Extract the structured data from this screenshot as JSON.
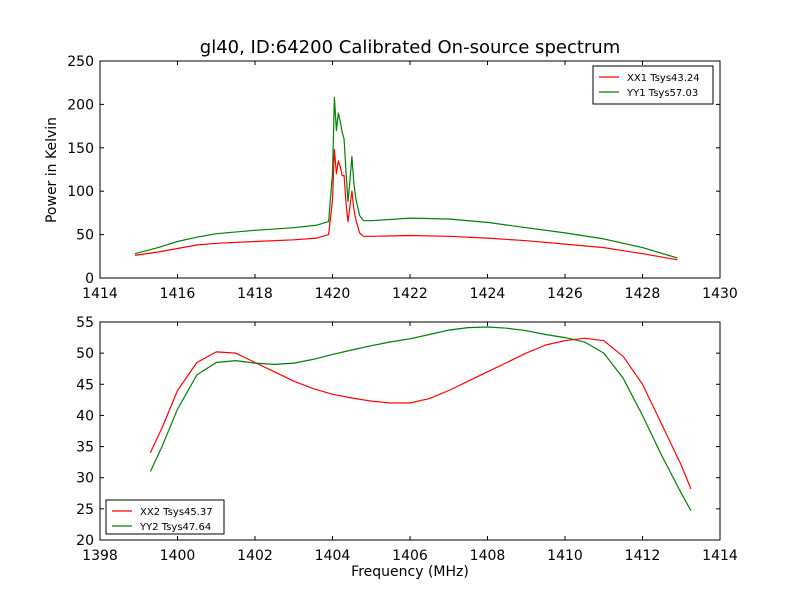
{
  "figure_title": "gl40, ID:64200 Calibrated On-source spectrum",
  "colors": {
    "red": "#ff0000",
    "green": "#008000",
    "axes": "#000000"
  },
  "chart_data": [
    {
      "type": "line",
      "ylabel": "Power in Kelvin",
      "xlabel": "",
      "xlim": [
        1414,
        1430
      ],
      "ylim": [
        0,
        250
      ],
      "xticks": [
        1414,
        1416,
        1418,
        1420,
        1422,
        1424,
        1426,
        1428,
        1430
      ],
      "yticks": [
        0,
        50,
        100,
        150,
        200,
        250
      ],
      "legend_position": "top-right",
      "series": [
        {
          "name": "XX1 Tsys43.24",
          "color": "#ff0000",
          "x": [
            1414.9,
            1415.5,
            1416.0,
            1416.5,
            1417.0,
            1418.0,
            1419.0,
            1419.6,
            1419.9,
            1420.0,
            1420.05,
            1420.1,
            1420.15,
            1420.2,
            1420.25,
            1420.3,
            1420.35,
            1420.4,
            1420.45,
            1420.5,
            1420.55,
            1420.6,
            1420.7,
            1420.8,
            1421.0,
            1422.0,
            1423.0,
            1424.0,
            1425.0,
            1426.0,
            1427.0,
            1428.0,
            1428.9
          ],
          "y": [
            26,
            30,
            34,
            38,
            40,
            42,
            44,
            46,
            50,
            90,
            148,
            120,
            135,
            128,
            118,
            118,
            85,
            65,
            82,
            100,
            80,
            68,
            52,
            48,
            48,
            49,
            48,
            46,
            43,
            39,
            35,
            28,
            21
          ]
        },
        {
          "name": "YY1 Tsys57.03",
          "color": "#008000",
          "x": [
            1414.9,
            1415.5,
            1416.0,
            1416.5,
            1417.0,
            1418.0,
            1419.0,
            1419.6,
            1419.9,
            1420.0,
            1420.05,
            1420.1,
            1420.15,
            1420.2,
            1420.25,
            1420.3,
            1420.35,
            1420.4,
            1420.45,
            1420.5,
            1420.55,
            1420.6,
            1420.7,
            1420.8,
            1421.0,
            1422.0,
            1423.0,
            1424.0,
            1425.0,
            1426.0,
            1427.0,
            1428.0,
            1428.9
          ],
          "y": [
            28,
            35,
            42,
            47,
            51,
            55,
            58,
            61,
            65,
            120,
            208,
            170,
            190,
            180,
            168,
            160,
            120,
            88,
            112,
            140,
            110,
            92,
            72,
            66,
            66,
            69,
            68,
            64,
            58,
            52,
            45,
            35,
            23
          ]
        }
      ]
    },
    {
      "type": "line",
      "ylabel": "",
      "xlabel": "Frequency (MHz)",
      "xlim": [
        1398,
        1414
      ],
      "ylim": [
        20,
        55
      ],
      "xticks": [
        1398,
        1400,
        1402,
        1404,
        1406,
        1408,
        1410,
        1412,
        1414
      ],
      "yticks": [
        20,
        25,
        30,
        35,
        40,
        45,
        50,
        55
      ],
      "legend_position": "bottom-left",
      "series": [
        {
          "name": "XX2 Tsys45.37",
          "color": "#ff0000",
          "x": [
            1399.3,
            1399.6,
            1400.0,
            1400.5,
            1401.0,
            1401.5,
            1402.0,
            1402.5,
            1403.0,
            1403.5,
            1404.0,
            1404.5,
            1405.0,
            1405.5,
            1406.0,
            1406.5,
            1407.0,
            1407.5,
            1408.0,
            1408.5,
            1409.0,
            1409.5,
            1410.0,
            1410.5,
            1411.0,
            1411.5,
            1412.0,
            1412.5,
            1413.0,
            1413.25
          ],
          "y": [
            34,
            38,
            44,
            48.5,
            50.2,
            50,
            48.5,
            47,
            45.5,
            44.3,
            43.4,
            42.8,
            42.3,
            42.0,
            42.0,
            42.7,
            44.0,
            45.5,
            47.0,
            48.5,
            50.0,
            51.3,
            52.0,
            52.4,
            52.0,
            49.5,
            45.0,
            38.5,
            32.0,
            28.2
          ]
        },
        {
          "name": "YY2 Tsys47.64",
          "color": "#008000",
          "x": [
            1399.3,
            1399.6,
            1400.0,
            1400.5,
            1401.0,
            1401.5,
            1402.0,
            1402.5,
            1403.0,
            1403.5,
            1404.0,
            1404.5,
            1405.0,
            1405.5,
            1406.0,
            1406.5,
            1407.0,
            1407.5,
            1408.0,
            1408.5,
            1409.0,
            1409.5,
            1410.0,
            1410.5,
            1411.0,
            1411.5,
            1412.0,
            1412.5,
            1413.0,
            1413.25
          ],
          "y": [
            31,
            35,
            41,
            46.5,
            48.5,
            48.8,
            48.4,
            48.2,
            48.4,
            49.0,
            49.8,
            50.5,
            51.2,
            51.8,
            52.3,
            53.0,
            53.7,
            54.1,
            54.2,
            54.0,
            53.6,
            53.0,
            52.5,
            51.8,
            50.0,
            46.0,
            40.0,
            33.5,
            27.5,
            24.7
          ]
        }
      ]
    }
  ]
}
